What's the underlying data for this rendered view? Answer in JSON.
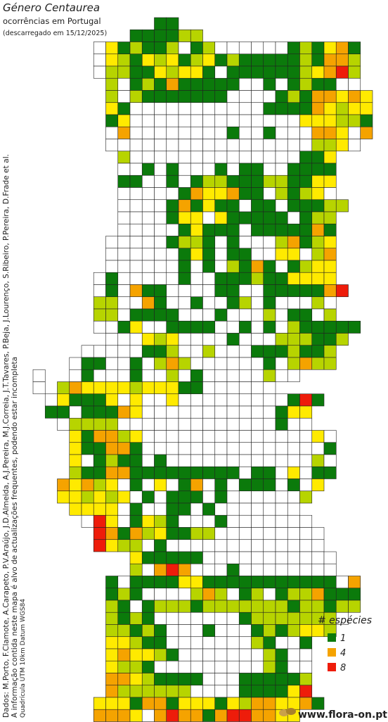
{
  "header": {
    "title": "Género Centaurea",
    "subtitle": "ocorrências em Portugal",
    "date": "(descarregado em 15/12/2025)"
  },
  "credits": [
    "Dados: M.Porto, F.Clamote, A.Carapeto, P.V.Araújo, J.D.Almeida, A.J.Pereira, M.J.Correia, J.T.Tavares, P.Beja, J.Lourenço, S.Ribeiro, P.Pereira, D.Frade et al.",
    "A informação contida neste mapa é alvo de actualizações frequentes, podendo estar incompleta",
    "Quadrícula UTM 10km Datum WGS84"
  ],
  "legend": {
    "title": "# espécies",
    "items": [
      {
        "value": 1,
        "color": "#0b7a0b"
      },
      {
        "value": 4,
        "color": "#f5a300"
      },
      {
        "value": 8,
        "color": "#ee1c0a"
      }
    ]
  },
  "cell_colors": [
    "#ffffff",
    "#0b7a0b",
    "#b7d400",
    "#ffea00",
    "#f5a300",
    "#ee1c0a"
  ],
  "logo": "www.flora-on.pt",
  "grid": {
    "rows": [
      [
        null,
        null,
        null,
        null,
        null,
        null,
        null,
        null,
        null,
        null,
        1,
        1
      ],
      [
        null,
        null,
        null,
        null,
        null,
        null,
        null,
        null,
        1,
        1,
        1,
        1,
        2,
        2
      ],
      [
        null,
        null,
        null,
        null,
        null,
        0,
        3,
        1,
        2,
        1,
        1,
        2,
        0,
        1,
        2,
        0,
        0,
        0,
        0,
        0,
        0,
        1,
        2,
        1,
        3,
        4,
        1
      ],
      [
        null,
        null,
        null,
        null,
        null,
        0,
        3,
        2,
        1,
        3,
        2,
        3,
        1,
        2,
        3,
        1,
        2,
        1,
        1,
        1,
        1,
        1,
        2,
        1,
        4,
        4,
        2
      ],
      [
        null,
        null,
        null,
        null,
        null,
        0,
        2,
        2,
        1,
        1,
        3,
        2,
        3,
        3,
        1,
        0,
        1,
        1,
        1,
        1,
        1,
        1,
        2,
        3,
        4,
        5,
        2
      ],
      [
        null,
        null,
        null,
        null,
        null,
        null,
        2,
        0,
        1,
        2,
        1,
        4,
        1,
        1,
        1,
        1,
        1,
        0,
        0,
        1,
        0,
        1,
        2,
        1,
        1,
        0,
        0
      ],
      [
        null,
        null,
        null,
        null,
        null,
        null,
        2,
        0,
        2,
        1,
        1,
        1,
        1,
        1,
        1,
        1,
        0,
        0,
        0,
        0,
        1,
        2,
        1,
        4,
        4,
        3,
        4,
        3
      ],
      [
        null,
        null,
        null,
        null,
        null,
        null,
        3,
        1,
        0,
        0,
        0,
        0,
        0,
        0,
        0,
        0,
        0,
        0,
        0,
        1,
        1,
        1,
        1,
        4,
        3,
        2,
        3,
        3
      ],
      [
        null,
        null,
        null,
        null,
        null,
        null,
        1,
        3,
        0,
        0,
        0,
        0,
        0,
        0,
        0,
        0,
        0,
        0,
        0,
        0,
        0,
        0,
        3,
        3,
        3,
        2,
        2,
        1
      ],
      [
        null,
        null,
        null,
        null,
        null,
        null,
        0,
        4,
        0,
        0,
        0,
        0,
        0,
        0,
        0,
        0,
        1,
        0,
        0,
        1,
        0,
        0,
        0,
        4,
        4,
        3,
        0,
        4
      ],
      [
        null,
        null,
        null,
        null,
        null,
        null,
        0,
        0,
        0,
        0,
        0,
        0,
        0,
        0,
        0,
        0,
        0,
        0,
        0,
        0,
        0,
        0,
        0,
        2,
        2,
        3,
        0
      ],
      [
        null,
        null,
        null,
        null,
        null,
        null,
        null,
        2,
        0,
        0,
        0,
        0,
        0,
        0,
        0,
        0,
        0,
        0,
        0,
        0,
        0,
        0,
        1,
        1,
        3
      ],
      [
        null,
        null,
        null,
        null,
        null,
        null,
        null,
        0,
        0,
        1,
        0,
        1,
        0,
        0,
        0,
        1,
        0,
        1,
        1,
        0,
        0,
        1,
        1,
        1,
        1
      ],
      [
        null,
        null,
        null,
        null,
        null,
        null,
        null,
        1,
        1,
        0,
        0,
        1,
        0,
        1,
        2,
        2,
        1,
        1,
        1,
        2,
        2,
        1,
        1,
        3,
        3
      ],
      [
        null,
        null,
        null,
        null,
        null,
        null,
        null,
        0,
        0,
        0,
        0,
        0,
        1,
        4,
        3,
        3,
        4,
        1,
        1,
        0,
        2,
        1,
        2,
        3,
        0
      ],
      [
        null,
        null,
        null,
        null,
        null,
        null,
        null,
        0,
        0,
        0,
        0,
        1,
        4,
        1,
        3,
        1,
        1,
        0,
        1,
        1,
        0,
        1,
        1,
        1,
        2,
        2
      ],
      [
        null,
        null,
        null,
        null,
        null,
        null,
        null,
        0,
        0,
        0,
        0,
        1,
        3,
        3,
        0,
        3,
        1,
        1,
        1,
        1,
        1,
        0,
        1,
        2,
        2
      ],
      [
        null,
        null,
        null,
        null,
        null,
        null,
        null,
        0,
        0,
        0,
        0,
        0,
        1,
        3,
        1,
        1,
        1,
        0,
        1,
        1,
        1,
        1,
        1,
        4,
        1
      ],
      [
        null,
        null,
        null,
        null,
        null,
        null,
        0,
        0,
        0,
        0,
        0,
        1,
        2,
        2,
        1,
        0,
        1,
        0,
        0,
        0,
        2,
        4,
        1,
        2,
        3
      ],
      [
        null,
        null,
        null,
        null,
        null,
        null,
        0,
        0,
        0,
        0,
        0,
        0,
        1,
        3,
        1,
        0,
        1,
        1,
        0,
        0,
        3,
        3,
        0,
        2,
        4
      ],
      [
        null,
        null,
        null,
        null,
        null,
        null,
        0,
        0,
        0,
        0,
        0,
        0,
        1,
        0,
        1,
        0,
        2,
        1,
        4,
        1,
        0,
        1,
        2,
        3,
        3
      ],
      [
        null,
        null,
        null,
        null,
        null,
        0,
        1,
        0,
        0,
        0,
        0,
        0,
        1,
        0,
        0,
        1,
        1,
        1,
        2,
        1,
        1,
        3,
        3,
        3,
        3
      ],
      [
        null,
        null,
        null,
        null,
        null,
        0,
        1,
        0,
        4,
        1,
        1,
        0,
        0,
        0,
        0,
        1,
        1,
        0,
        0,
        1,
        1,
        1,
        1,
        1,
        4,
        5
      ],
      [
        null,
        null,
        null,
        null,
        null,
        2,
        2,
        0,
        0,
        4,
        1,
        0,
        0,
        1,
        0,
        0,
        1,
        2,
        0,
        1,
        0,
        0,
        0,
        2,
        0
      ],
      [
        null,
        null,
        null,
        null,
        null,
        2,
        2,
        0,
        1,
        1,
        1,
        1,
        0,
        0,
        0,
        1,
        0,
        0,
        0,
        2,
        0,
        1,
        1,
        0,
        2
      ],
      [
        null,
        null,
        null,
        null,
        null,
        0,
        0,
        1,
        3,
        0,
        0,
        1,
        1,
        1,
        1,
        0,
        0,
        1,
        0,
        1,
        0,
        2,
        1,
        1,
        1,
        1,
        1
      ],
      [
        null,
        null,
        null,
        null,
        null,
        null,
        0,
        0,
        0,
        3,
        2,
        3,
        0,
        0,
        0,
        0,
        1,
        0,
        0,
        0,
        2,
        2,
        2,
        1,
        1,
        2
      ],
      [
        null,
        null,
        null,
        null,
        0,
        0,
        0,
        0,
        0,
        1,
        1,
        2,
        0,
        0,
        2,
        0,
        0,
        0,
        1,
        1,
        1,
        2,
        1,
        1,
        2
      ],
      [
        null,
        null,
        null,
        0,
        1,
        1,
        0,
        0,
        1,
        0,
        2,
        4,
        2,
        0,
        0,
        0,
        0,
        0,
        0,
        1,
        0,
        2,
        4,
        2,
        2
      ],
      [
        0,
        null,
        null,
        0,
        1,
        0,
        0,
        0,
        1,
        0,
        0,
        2,
        0,
        1,
        0,
        0,
        0,
        0,
        0,
        2,
        0,
        0
      ],
      [
        0,
        null,
        2,
        4,
        3,
        3,
        3,
        3,
        2,
        3,
        3,
        3,
        1,
        1,
        0,
        0,
        0,
        0,
        0,
        0
      ],
      [
        null,
        0,
        3,
        1,
        1,
        1,
        3,
        0,
        3,
        0,
        0,
        3,
        0,
        0,
        0,
        0,
        0,
        0,
        0,
        0,
        0,
        1,
        5,
        1
      ],
      [
        null,
        1,
        1,
        0,
        1,
        1,
        1,
        4,
        3,
        0,
        0,
        0,
        0,
        0,
        0,
        0,
        0,
        0,
        0,
        0,
        1,
        3,
        3
      ],
      [
        null,
        null,
        0,
        2,
        2,
        2,
        2,
        0,
        0,
        0,
        0,
        0,
        0,
        0,
        0,
        0,
        0,
        0,
        0,
        0,
        1,
        0,
        0
      ],
      [
        null,
        null,
        null,
        3,
        1,
        4,
        4,
        2,
        3,
        0,
        0,
        0,
        0,
        0,
        0,
        0,
        0,
        0,
        0,
        0,
        0,
        0,
        0,
        3,
        0
      ],
      [
        null,
        null,
        null,
        3,
        1,
        1,
        4,
        4,
        1,
        0,
        0,
        0,
        0,
        0,
        0,
        0,
        0,
        0,
        0,
        0,
        0,
        0,
        0,
        0,
        1
      ],
      [
        null,
        null,
        null,
        3,
        0,
        1,
        2,
        1,
        1,
        0,
        1,
        0,
        0,
        0,
        0,
        0,
        0,
        0,
        0,
        0,
        0,
        0,
        0,
        2,
        0
      ],
      [
        null,
        null,
        null,
        2,
        1,
        1,
        4,
        4,
        1,
        1,
        1,
        1,
        1,
        1,
        1,
        1,
        1,
        0,
        1,
        1,
        0,
        3,
        0,
        1,
        1
      ],
      [
        null,
        null,
        4,
        3,
        4,
        2,
        3,
        0,
        1,
        0,
        3,
        0,
        1,
        4,
        0,
        1,
        0,
        1,
        1,
        1,
        0,
        1,
        0,
        3
      ],
      [
        null,
        null,
        3,
        3,
        2,
        3,
        2,
        3,
        0,
        1,
        0,
        1,
        1,
        1,
        0,
        1,
        0,
        0,
        0,
        0,
        0,
        0,
        2
      ],
      [
        null,
        null,
        null,
        3,
        3,
        3,
        3,
        0,
        1,
        0,
        0,
        1,
        1,
        0,
        1,
        0,
        0,
        0,
        0,
        0,
        0,
        0
      ],
      [
        null,
        null,
        null,
        null,
        0,
        5,
        3,
        0,
        1,
        3,
        2,
        1,
        0,
        0,
        0,
        1,
        0,
        0,
        0,
        0,
        0,
        0,
        0
      ],
      [
        null,
        null,
        null,
        null,
        null,
        5,
        4,
        1,
        4,
        2,
        3,
        1,
        1,
        2,
        2,
        0,
        0,
        0,
        0,
        0,
        0,
        0,
        0,
        0
      ],
      [
        null,
        null,
        null,
        null,
        null,
        5,
        3,
        2,
        2,
        0,
        1,
        0,
        0,
        0,
        0,
        0,
        0,
        0,
        0,
        0,
        0,
        0,
        0,
        0
      ],
      [
        null,
        null,
        null,
        null,
        null,
        null,
        null,
        null,
        3,
        1,
        1,
        1,
        1,
        1,
        0,
        0,
        0,
        0,
        0,
        0,
        0,
        0,
        0,
        0,
        0
      ],
      [
        null,
        null,
        null,
        null,
        null,
        null,
        null,
        null,
        2,
        0,
        4,
        5,
        4,
        0,
        0,
        0,
        1,
        0,
        0,
        0,
        0,
        0,
        0,
        0,
        0
      ],
      [
        null,
        null,
        null,
        null,
        null,
        null,
        1,
        0,
        1,
        1,
        1,
        1,
        3,
        3,
        1,
        1,
        1,
        1,
        1,
        1,
        1,
        1,
        1,
        1,
        1,
        0,
        4
      ],
      [
        null,
        null,
        null,
        null,
        null,
        null,
        1,
        2,
        1,
        0,
        0,
        0,
        0,
        2,
        4,
        2,
        0,
        1,
        2,
        0,
        1,
        2,
        2,
        4,
        1,
        1,
        1
      ],
      [
        null,
        null,
        null,
        null,
        null,
        null,
        2,
        1,
        0,
        1,
        2,
        2,
        2,
        1,
        2,
        2,
        2,
        2,
        2,
        2,
        2,
        1,
        2,
        2,
        1,
        2,
        2
      ],
      [
        null,
        null,
        null,
        null,
        null,
        null,
        2,
        1,
        2,
        1,
        0,
        0,
        0,
        0,
        0,
        0,
        0,
        1,
        2,
        2,
        2,
        2,
        2,
        2,
        2,
        0
      ],
      [
        null,
        null,
        null,
        null,
        null,
        null,
        2,
        2,
        1,
        2,
        1,
        0,
        0,
        0,
        1,
        0,
        0,
        0,
        1,
        2,
        1,
        2,
        3,
        3,
        2
      ],
      [
        null,
        null,
        null,
        null,
        null,
        null,
        3,
        3,
        2,
        1,
        1,
        0,
        0,
        0,
        0,
        0,
        0,
        0,
        2,
        1,
        0,
        0,
        1
      ],
      [
        null,
        null,
        null,
        null,
        null,
        null,
        3,
        4,
        3,
        3,
        2,
        1,
        0,
        0,
        0,
        0,
        0,
        0,
        0,
        2,
        1,
        0,
        0
      ],
      [
        null,
        null,
        null,
        null,
        null,
        null,
        3,
        2,
        2,
        1,
        0,
        0,
        0,
        0,
        0,
        0,
        0,
        0,
        0,
        2,
        1,
        0,
        0
      ],
      [
        null,
        null,
        null,
        null,
        null,
        null,
        4,
        4,
        3,
        2,
        1,
        1,
        1,
        1,
        0,
        0,
        0,
        1,
        1,
        1,
        1,
        1,
        2
      ],
      [
        null,
        null,
        null,
        null,
        null,
        null,
        4,
        2,
        2,
        2,
        2,
        2,
        2,
        0,
        0,
        0,
        0,
        1,
        1,
        1,
        1,
        3,
        5
      ],
      [
        null,
        null,
        null,
        null,
        null,
        3,
        3,
        3,
        1,
        4,
        4,
        1,
        3,
        3,
        3,
        1,
        3,
        2,
        4,
        4,
        3,
        3,
        4,
        1
      ],
      [
        null,
        null,
        null,
        null,
        null,
        4,
        4,
        4,
        3,
        0,
        4,
        5,
        4,
        4,
        1,
        4,
        5,
        5,
        4,
        4,
        3,
        3
      ]
    ]
  }
}
